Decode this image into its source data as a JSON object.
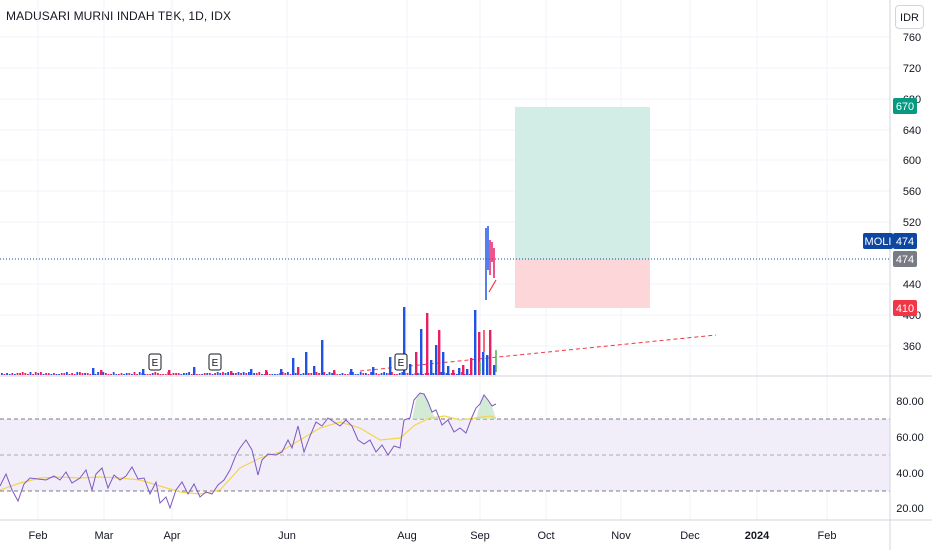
{
  "header": {
    "title": "MADUSARI MURNI INDAH TBK, 1D, IDX",
    "currency": "IDR"
  },
  "price_axis": {
    "ticks": [
      "760",
      "720",
      "680",
      "640",
      "600",
      "560",
      "520",
      "440",
      "400",
      "360"
    ]
  },
  "rsi_axis": {
    "ticks": [
      "80.00",
      "60.00",
      "40.00",
      "20.00"
    ]
  },
  "time_axis": {
    "ticks": [
      "Feb",
      "Mar",
      "Apr",
      "Jun",
      "Aug",
      "Sep",
      "Oct",
      "Nov",
      "Dec",
      "2024",
      "Feb"
    ]
  },
  "tags": {
    "target": "670",
    "symbol": "MOLI",
    "last": "474",
    "entry": "474",
    "stop": "410"
  },
  "earnings_label": "E",
  "colors": {
    "up": "#1e53e5",
    "down": "#e91e63",
    "recent_up": "#4caf50",
    "recent_down": "#f23645",
    "target_tag": "#089981",
    "stop_tag": "#f23645",
    "symbol_tag": "#0d47a1",
    "entry_tag": "#787b86",
    "profit_zone": "#d1ede6",
    "loss_zone": "#fcd6d9",
    "rsi_line": "#7e57c2",
    "rsi_ma": "#f5d44f",
    "rsi_band": "#f1eef9"
  },
  "chart_data": {
    "type": "candlestick",
    "symbol": "MOLI",
    "exchange": "IDX",
    "timeframe": "1D",
    "last_price": 474,
    "position_tool": {
      "entry": 474,
      "target": 670,
      "stop": 410
    },
    "y_range": [
      330,
      770
    ],
    "rsi": {
      "levels": [
        70,
        50,
        30
      ],
      "range": [
        14,
        90
      ]
    }
  }
}
